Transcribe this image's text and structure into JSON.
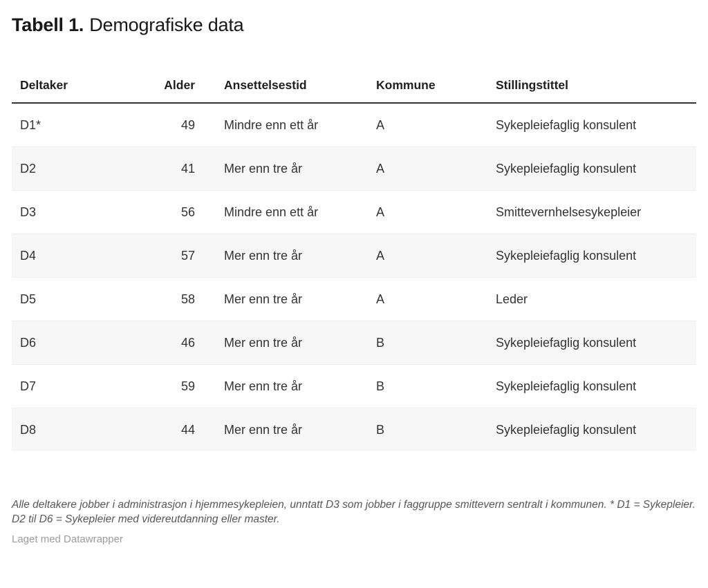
{
  "title": {
    "label_bold": "Tabell 1.",
    "label_regular": "Demografiske data"
  },
  "chart_data": {
    "type": "table",
    "title": "Tabell 1. Demografiske data",
    "columns": [
      {
        "label": "Deltaker",
        "align": "left"
      },
      {
        "label": "Alder",
        "align": "right"
      },
      {
        "label": "Ansettelsestid",
        "align": "left"
      },
      {
        "label": "Kommune",
        "align": "left"
      },
      {
        "label": "Stillingstittel",
        "align": "left"
      }
    ],
    "rows": [
      [
        "D1*",
        "49",
        "Mindre enn ett år",
        "A",
        "Sykepleiefaglig konsulent"
      ],
      [
        "D2",
        "41",
        "Mer enn tre år",
        "A",
        "Sykepleiefaglig konsulent"
      ],
      [
        "D3",
        "56",
        "Mindre enn ett år",
        "A",
        "Smittevernhelsesykepleier"
      ],
      [
        "D4",
        "57",
        "Mer enn tre år",
        "A",
        "Sykepleiefaglig konsulent"
      ],
      [
        "D5",
        "58",
        "Mer enn tre år",
        "A",
        "Leder"
      ],
      [
        "D6",
        "46",
        "Mer enn tre år",
        "B",
        "Sykepleiefaglig konsulent"
      ],
      [
        "D7",
        "59",
        "Mer enn tre år",
        "B",
        "Sykepleiefaglig konsulent"
      ],
      [
        "D8",
        "44",
        "Mer enn tre år",
        "B",
        "Sykepleiefaglig konsulent"
      ]
    ],
    "footnote": "Alle deltakere jobber i administrasjon i hjemmesykepleien, unntatt D3 som jobber i faggruppe smittevern sentralt i kommunen. * D1 = Sykepleier. D2 til D6 = Sykepleier med videreutdanning eller master.",
    "credit": "Laget med Datawrapper",
    "layout_hints": {
      "zebra_striping": true,
      "header_rule_color": "#333333",
      "zebra_color": "#f7f7f7",
      "row_border_color": "#ededed",
      "footnote_color": "#565656",
      "credit_color": "#9c9c9c"
    }
  }
}
